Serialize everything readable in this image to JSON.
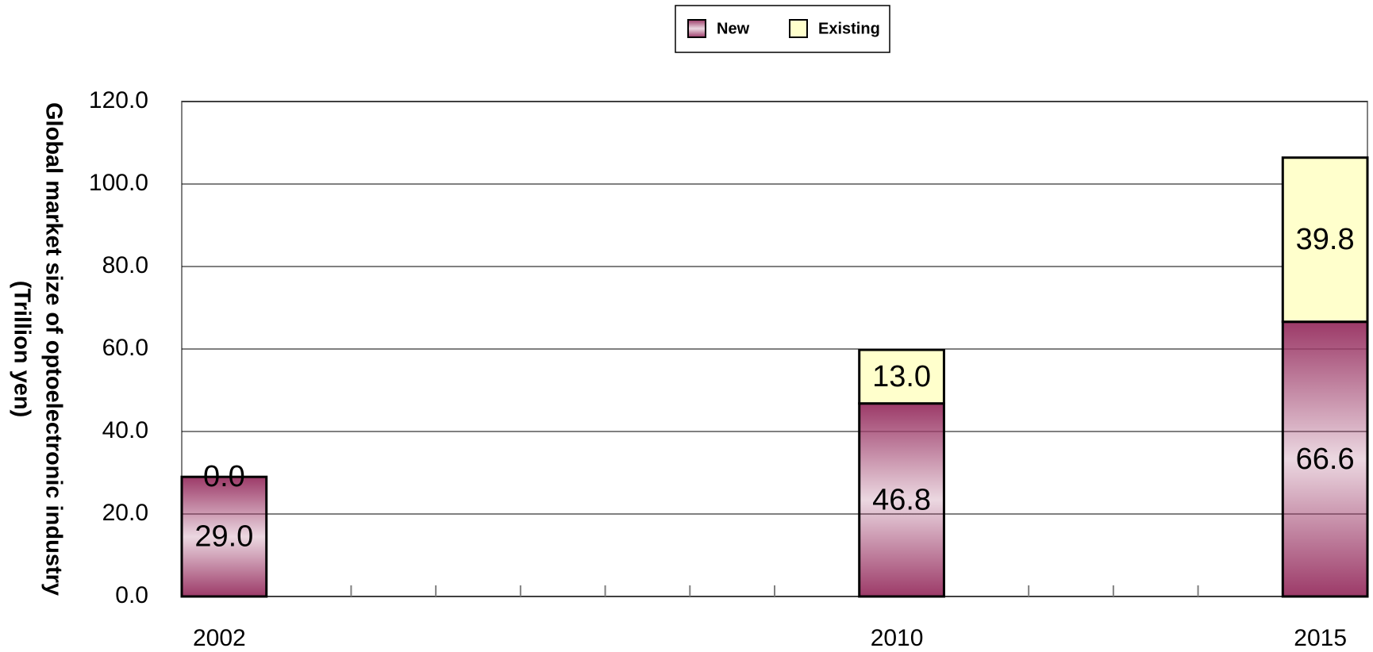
{
  "chart_data": {
    "type": "bar",
    "stacked": true,
    "ylabel": [
      "Global market size of optoelectronic industry",
      "(Trillion yen)"
    ],
    "x": [
      2002,
      2010,
      2015
    ],
    "series": [
      {
        "name": "New",
        "color": "#9c3a68",
        "values": [
          29.0,
          46.8,
          66.6
        ],
        "value_labels": [
          "29.0",
          "46.8",
          "66.6"
        ]
      },
      {
        "name": "Existing",
        "color": "#ffffcc",
        "values": [
          0.0,
          13.0,
          39.8
        ],
        "value_labels": [
          "0.0",
          "13.0",
          "39.8"
        ]
      }
    ],
    "xlim": [
      2002,
      2016
    ],
    "xticks": [
      2002,
      2003,
      2004,
      2005,
      2006,
      2007,
      2008,
      2009,
      2010,
      2011,
      2012,
      2013,
      2014,
      2015,
      2016
    ],
    "ylim": [
      0,
      120
    ],
    "yticks": [
      {
        "value": 0,
        "label": "0.0"
      },
      {
        "value": 20,
        "label": "20.0"
      },
      {
        "value": 40,
        "label": "40.0"
      },
      {
        "value": 60,
        "label": "60.0"
      },
      {
        "value": 80,
        "label": "80.0"
      },
      {
        "value": 100,
        "label": "100.0"
      },
      {
        "value": 120,
        "label": "120.0"
      }
    ],
    "grid": true,
    "legend": "top"
  }
}
